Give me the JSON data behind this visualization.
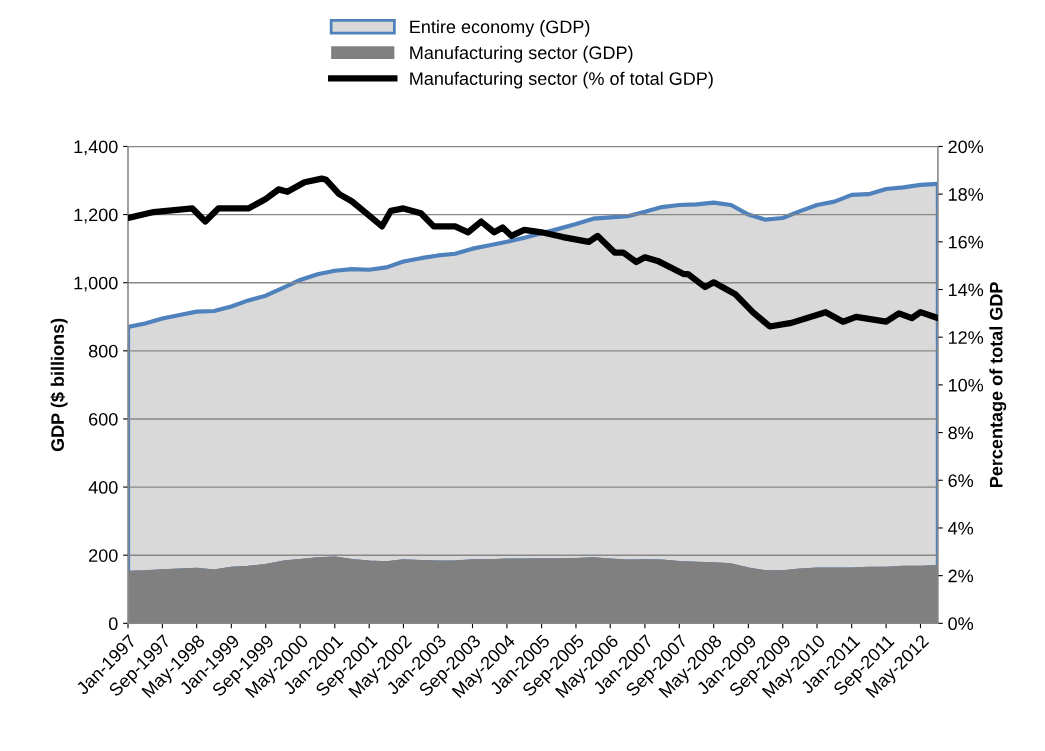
{
  "chart_data": {
    "type": "area",
    "ylabel": "GDP ($ billions)",
    "y2label": "Percentage of total GDP",
    "xlim": [
      "1997-01",
      "2012-09"
    ],
    "xticks": [
      {
        "value": "1997-01",
        "label": "Jan-1997"
      },
      {
        "value": "1997-09",
        "label": "Sep-1997"
      },
      {
        "value": "1998-05",
        "label": "May-1998"
      },
      {
        "value": "1999-01",
        "label": "Jan-1999"
      },
      {
        "value": "1999-09",
        "label": "Sep-1999"
      },
      {
        "value": "2000-05",
        "label": "May-2000"
      },
      {
        "value": "2001-01",
        "label": "Jan-2001"
      },
      {
        "value": "2001-09",
        "label": "Sep-2001"
      },
      {
        "value": "2002-05",
        "label": "May-2002"
      },
      {
        "value": "2003-01",
        "label": "Jan-2003"
      },
      {
        "value": "2003-09",
        "label": "Sep-2003"
      },
      {
        "value": "2004-05",
        "label": "May-2004"
      },
      {
        "value": "2005-01",
        "label": "Jan-2005"
      },
      {
        "value": "2005-09",
        "label": "Sep-2005"
      },
      {
        "value": "2006-05",
        "label": "May-2006"
      },
      {
        "value": "2007-01",
        "label": "Jan-2007"
      },
      {
        "value": "2007-09",
        "label": "Sep-2007"
      },
      {
        "value": "2008-05",
        "label": "May-2008"
      },
      {
        "value": "2009-01",
        "label": "Jan-2009"
      },
      {
        "value": "2009-09",
        "label": "Sep-2009"
      },
      {
        "value": "2010-05",
        "label": "May-2010"
      },
      {
        "value": "2011-01",
        "label": "Jan-2011"
      },
      {
        "value": "2011-09",
        "label": "Sep-2011"
      },
      {
        "value": "2012-05",
        "label": "May-2012"
      }
    ],
    "ylim": [
      0,
      1400
    ],
    "yticks": [
      0,
      200,
      400,
      600,
      800,
      {
        "value": 1000,
        "label": "1,000"
      },
      {
        "value": 1200,
        "label": "1,200"
      },
      {
        "value": 1400,
        "label": "1,400"
      }
    ],
    "y2lim": [
      0,
      20
    ],
    "y2ticks": [
      {
        "value": 0,
        "label": "0%"
      },
      {
        "value": 2,
        "label": "2%"
      },
      {
        "value": 4,
        "label": "4%"
      },
      {
        "value": 6,
        "label": "6%"
      },
      {
        "value": 8,
        "label": "8%"
      },
      {
        "value": 10,
        "label": "10%"
      },
      {
        "value": 12,
        "label": "12%"
      },
      {
        "value": 14,
        "label": "14%"
      },
      {
        "value": 16,
        "label": "16%"
      },
      {
        "value": 18,
        "label": "18%"
      },
      {
        "value": 20,
        "label": "20%"
      }
    ],
    "grid": "y",
    "legend": "top",
    "x": [
      "1997-01",
      "1997-05",
      "1997-09",
      "1998-01",
      "1998-05",
      "1998-09",
      "1999-01",
      "1999-05",
      "1999-09",
      "2000-01",
      "2000-05",
      "2000-09",
      "2001-01",
      "2001-05",
      "2001-09",
      "2002-01",
      "2002-05",
      "2002-09",
      "2003-01",
      "2003-05",
      "2003-09",
      "2004-01",
      "2004-05",
      "2004-09",
      "2005-01",
      "2005-05",
      "2005-09",
      "2006-01",
      "2006-05",
      "2006-09",
      "2007-01",
      "2007-05",
      "2007-09",
      "2008-01",
      "2008-05",
      "2008-09",
      "2009-01",
      "2009-05",
      "2009-09",
      "2010-01",
      "2010-05",
      "2010-09",
      "2011-01",
      "2011-05",
      "2011-09",
      "2012-01",
      "2012-05",
      "2012-09"
    ],
    "series": [
      {
        "name": "Entire economy (GDP)",
        "color": "#d9d9d9",
        "values": [
          870,
          880,
          895,
          905,
          915,
          917,
          930,
          948,
          962,
          985,
          1008,
          1025,
          1035,
          1040,
          1038,
          1045,
          1062,
          1072,
          1080,
          1085,
          1100,
          1110,
          1120,
          1132,
          1145,
          1158,
          1172,
          1188,
          1192,
          1195,
          1208,
          1222,
          1228,
          1230,
          1235,
          1228,
          1200,
          1185,
          1190,
          1210,
          1228,
          1238,
          1258,
          1260,
          1275,
          1280,
          1287,
          1290
        ]
      },
      {
        "name": "Manufacturing sector (GDP)",
        "color": "#808080",
        "values": [
          148,
          150,
          153,
          155,
          157,
          152,
          160,
          163,
          168,
          178,
          183,
          188,
          190,
          183,
          178,
          176,
          182,
          180,
          178,
          178,
          182,
          182,
          184,
          184,
          185,
          185,
          186,
          188,
          184,
          181,
          182,
          181,
          177,
          175,
          173,
          170,
          158,
          150,
          150,
          155,
          158,
          158,
          158,
          160,
          160,
          163,
          163,
          165
        ]
      },
      {
        "name": "Manufacturing sector (% of total GDP)",
        "type": "line",
        "axis": "y2",
        "color": "#000000",
        "x": [
          "1997-01",
          "1997-07",
          "1998-04",
          "1998-07",
          "1998-10",
          "1999-05",
          "1999-09",
          "1999-12",
          "2000-02",
          "2000-06",
          "2000-10",
          "2000-11",
          "2001-02",
          "2001-05",
          "2001-09",
          "2001-12",
          "2002-02",
          "2002-05",
          "2002-09",
          "2002-12",
          "2003-05",
          "2003-08",
          "2003-11",
          "2004-02",
          "2004-04",
          "2004-06",
          "2004-09",
          "2005-01",
          "2005-06",
          "2005-12",
          "2006-02",
          "2006-06",
          "2006-08",
          "2006-11",
          "2007-01",
          "2007-04",
          "2007-10",
          "2007-11",
          "2008-03",
          "2008-05",
          "2008-10",
          "2009-02",
          "2009-06",
          "2009-11",
          "2010-07",
          "2010-11",
          "2011-02",
          "2011-09",
          "2011-12",
          "2012-03",
          "2012-05",
          "2012-09"
        ],
        "values": [
          17.0,
          17.25,
          17.4,
          16.85,
          17.4,
          17.4,
          17.8,
          18.2,
          18.1,
          18.5,
          18.65,
          18.6,
          18.0,
          17.7,
          17.1,
          16.65,
          17.3,
          17.4,
          17.2,
          16.65,
          16.65,
          16.4,
          16.85,
          16.4,
          16.6,
          16.25,
          16.5,
          16.4,
          16.2,
          16.0,
          16.25,
          15.55,
          15.55,
          15.15,
          15.35,
          15.2,
          14.65,
          14.65,
          14.1,
          14.3,
          13.8,
          13.05,
          12.45,
          12.6,
          13.05,
          12.65,
          12.85,
          12.65,
          13.0,
          12.8,
          13.05,
          12.8
        ]
      }
    ]
  }
}
